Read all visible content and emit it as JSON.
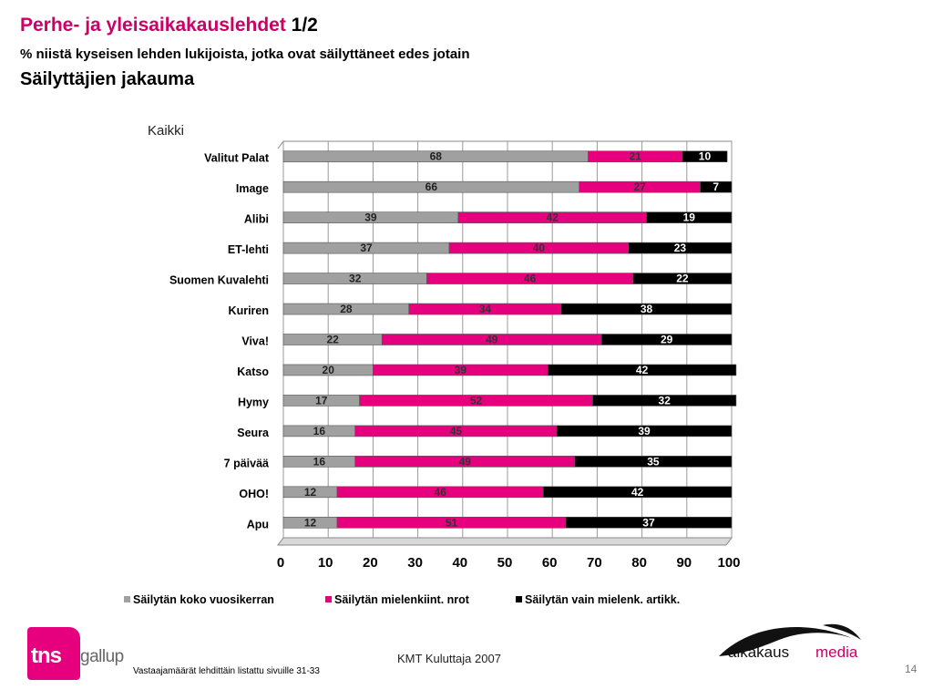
{
  "header": {
    "title_pink": "Perhe- ja yleisaikakauslehdet",
    "title_page": "1/2",
    "subtitle": "% niistä kyseisen lehden lukijoista, jotka ovat säilyttäneet edes jotain",
    "heading2": "Säilyttäjien jakauma"
  },
  "colors": {
    "series1": "#a0a0a0",
    "series2": "#e6007e",
    "series3": "#000000",
    "brand_pink": "#cc0066"
  },
  "chart_data": {
    "type": "bar",
    "orientation": "horizontal",
    "stacked": true,
    "title": "Kaikki",
    "categories": [
      "Valitut Palat",
      "Image",
      "Alibi",
      "ET-lehti",
      "Suomen Kuvalehti",
      "Kuriren",
      "Viva!",
      "Katso",
      "Hymy",
      "Seura",
      "7 päivää",
      "OHO!",
      "Apu"
    ],
    "series": [
      {
        "name": "Säilytän koko vuosikerran",
        "values": [
          68,
          66,
          39,
          37,
          32,
          28,
          22,
          20,
          17,
          16,
          16,
          12,
          12
        ]
      },
      {
        "name": "Säilytän mielenkiint. nrot",
        "values": [
          21,
          27,
          42,
          40,
          46,
          34,
          49,
          39,
          52,
          45,
          49,
          46,
          51
        ]
      },
      {
        "name": "Säilytän vain mielenk. artikk.",
        "values": [
          10,
          7,
          19,
          23,
          22,
          38,
          29,
          42,
          32,
          39,
          35,
          42,
          37
        ]
      }
    ],
    "xlim": [
      0,
      100
    ],
    "xticks": [
      0,
      10,
      20,
      30,
      40,
      50,
      60,
      70,
      80,
      90,
      100
    ],
    "grid": true,
    "legend_position": "bottom"
  },
  "footer": {
    "source": "KMT Kuluttaja 2007",
    "note": "Vastaajamäärät lehdittäin listattu sivuille 31-33",
    "page_number": "14"
  },
  "logos": {
    "tns": "tns",
    "gallup": "gallup",
    "aikakausmedia_1": "aikakaus",
    "aikakausmedia_2": "media"
  }
}
